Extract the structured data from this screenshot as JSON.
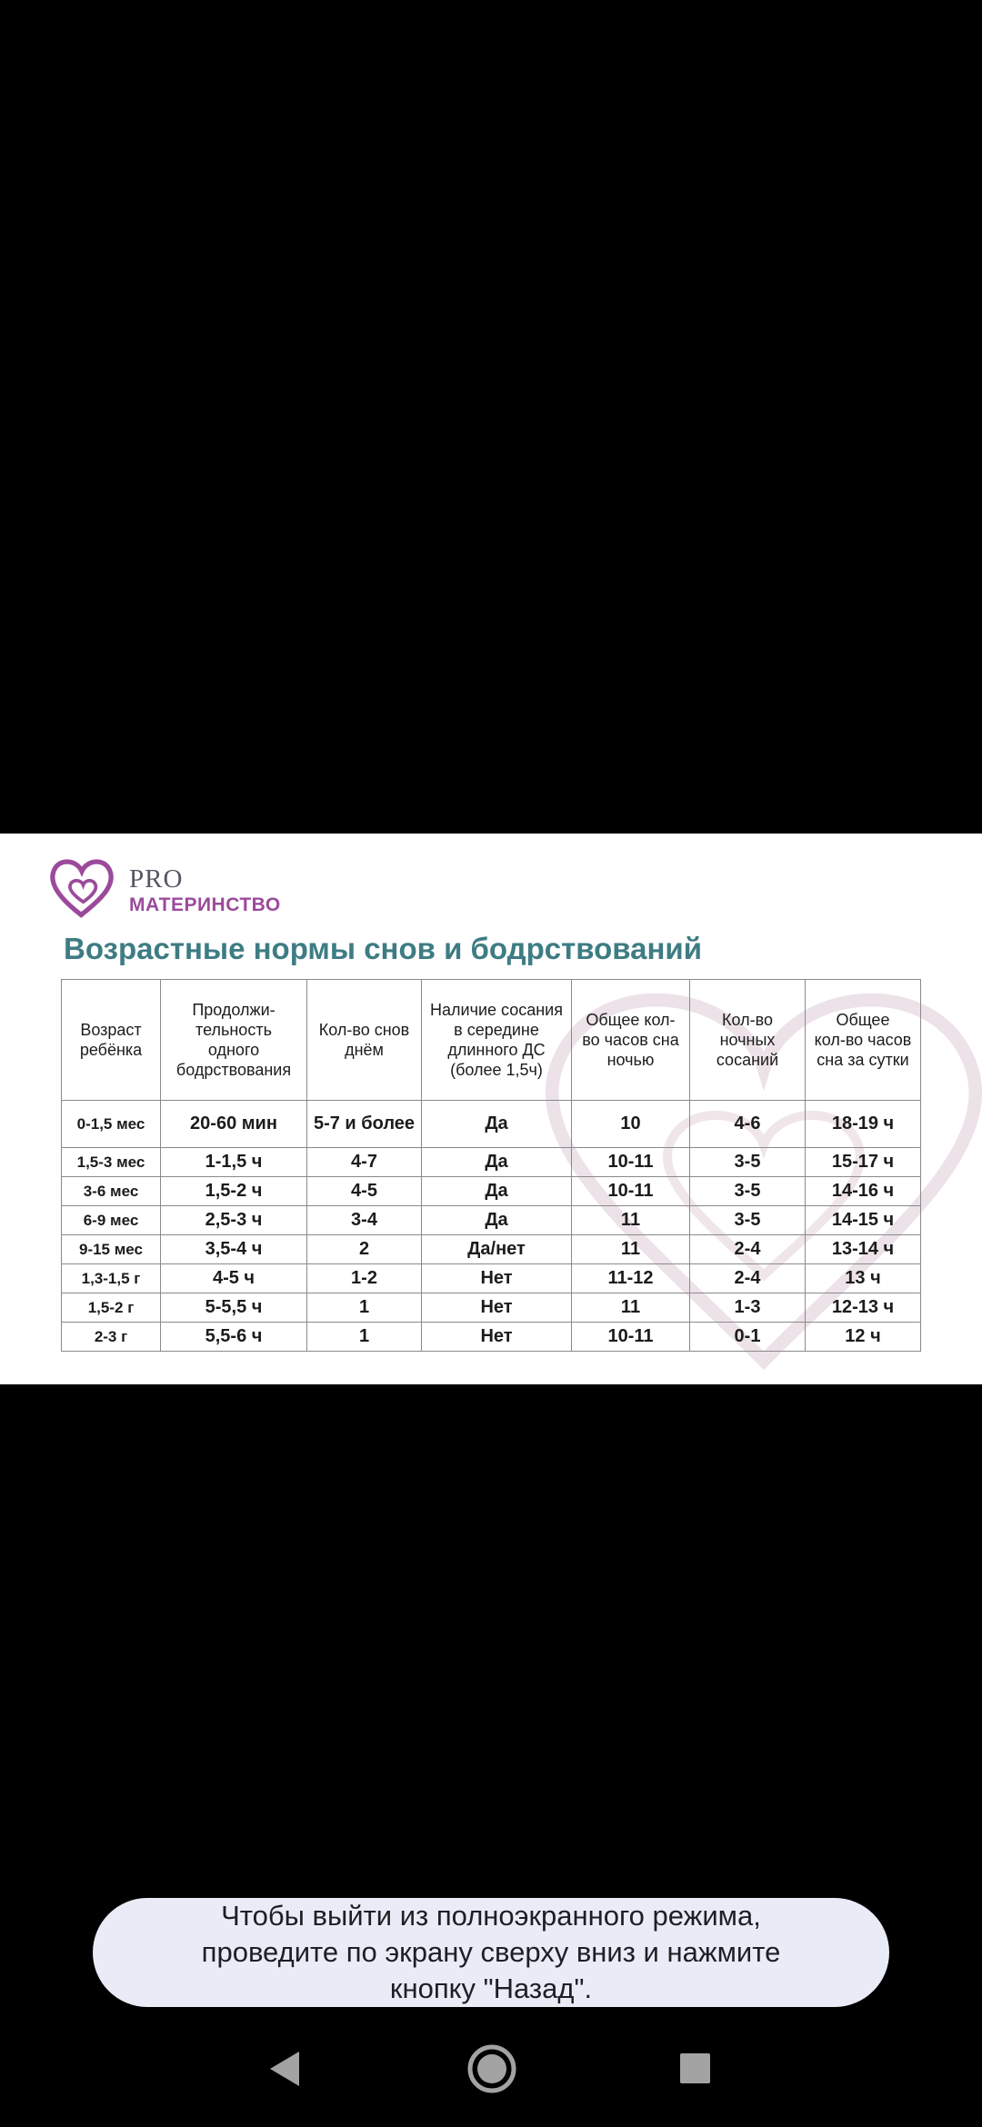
{
  "brand": {
    "name_top": "PRO",
    "name_bottom": "МАТЕРИНСТВО",
    "heart_icon": "double-heart-logo",
    "purple": "#9b4a9b"
  },
  "title": "Возрастные нормы снов и бодрствований",
  "table": {
    "headers": [
      "Возраст\nребёнка",
      "Продолжи-\nтельность\nодного\nбодрствования",
      "Кол-во снов\nднём",
      "Наличие сосания\nв середине\nдлинного ДС\n(более 1,5ч)",
      "Общее кол-\nво часов сна\nночью",
      "Кол-во\nночных\nсосаний",
      "Общее\nкол-во часов\nсна за сутки"
    ],
    "rows": [
      [
        "0-1,5 мес",
        "20-60 мин",
        "5-7 и более",
        "Да",
        "10",
        "4-6",
        "18-19 ч"
      ],
      [
        "1,5-3 мес",
        "1-1,5 ч",
        "4-7",
        "Да",
        "10-11",
        "3-5",
        "15-17 ч"
      ],
      [
        "3-6 мес",
        "1,5-2 ч",
        "4-5",
        "Да",
        "10-11",
        "3-5",
        "14-16 ч"
      ],
      [
        "6-9 мес",
        "2,5-3 ч",
        "3-4",
        "Да",
        "11",
        "3-5",
        "14-15 ч"
      ],
      [
        "9-15 мес",
        "3,5-4 ч",
        "2",
        "Да/нет",
        "11",
        "2-4",
        "13-14 ч"
      ],
      [
        "1,3-1,5 г",
        "4-5 ч",
        "1-2",
        "Нет",
        "11-12",
        "2-4",
        "13 ч"
      ],
      [
        "1,5-2 г",
        "5-5,5 ч",
        "1",
        "Нет",
        "11",
        "1-3",
        "12-13 ч"
      ],
      [
        "2-3 г",
        "5,5-6 ч",
        "1",
        "Нет",
        "10-11",
        "0-1",
        "12 ч"
      ]
    ]
  },
  "toast": {
    "message": "Чтобы выйти из полноэкранного режима,\nпроведите по экрану сверху вниз и нажмите\nкнопку \"Назад\"."
  },
  "nav": {
    "back_icon": "back-triangle",
    "home_icon": "home-circle",
    "recents_icon": "recents-square"
  },
  "colors": {
    "title_teal": "#3e7c83",
    "brand_purple": "#9b4a9b",
    "toast_bg": "#e9ecf6",
    "nav_icon_gray": "#a3a3a3",
    "table_border": "#8a8a8a",
    "background": "#000000"
  }
}
